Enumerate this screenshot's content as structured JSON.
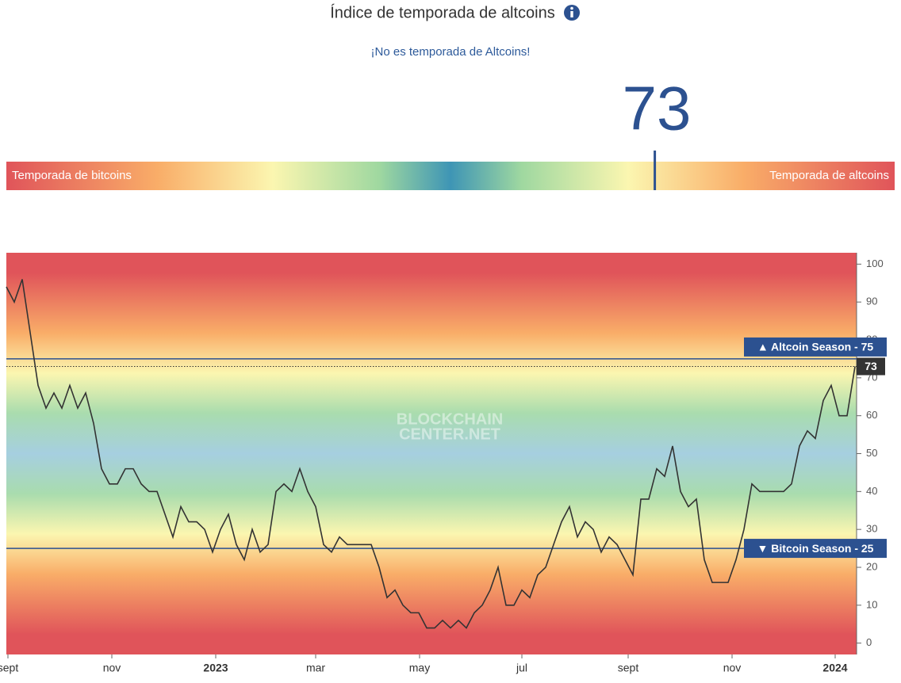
{
  "header": {
    "title": "Índice de temporada de altcoins",
    "subtitle": "¡No es temporada de Altcoins!"
  },
  "gauge": {
    "left_label": "Temporada de bitcoins",
    "right_label": "Temporada de altcoins",
    "range": [
      0,
      100
    ]
  },
  "chart_data": {
    "type": "line",
    "series": [
      {
        "color": "#333333",
        "values": [
          94,
          90,
          96,
          82,
          68,
          62,
          66,
          62,
          68,
          62,
          66,
          58,
          46,
          42,
          42,
          46,
          46,
          42,
          40,
          40,
          34,
          28,
          36,
          32,
          32,
          30,
          24,
          30,
          34,
          26,
          22,
          30,
          24,
          26,
          40,
          42,
          40,
          46,
          40,
          36,
          26,
          24,
          28,
          26,
          26,
          26,
          26,
          20,
          12,
          14,
          10,
          8,
          8,
          4,
          4,
          6,
          4,
          6,
          4,
          8,
          10,
          14,
          20,
          10,
          10,
          14,
          12,
          18,
          20,
          26,
          32,
          36,
          28,
          32,
          30,
          24,
          28,
          26,
          22,
          18,
          38,
          38,
          46,
          44,
          52,
          40,
          36,
          38,
          22,
          16,
          16,
          16,
          22,
          30,
          42,
          40,
          40,
          40,
          40,
          42,
          52,
          56,
          54,
          64,
          68,
          60,
          60,
          73
        ]
      }
    ],
    "xlim": [
      0,
      107.2
    ],
    "xticks": [
      {
        "value": 0.2,
        "label": "sept"
      },
      {
        "value": 13.3,
        "label": "nov"
      },
      {
        "value": 26.4,
        "label": "2023"
      },
      {
        "value": 39,
        "label": "mar"
      },
      {
        "value": 52.1,
        "label": "may"
      },
      {
        "value": 65,
        "label": "jul"
      },
      {
        "value": 78.4,
        "label": "sept"
      },
      {
        "value": 91.5,
        "label": "nov"
      },
      {
        "value": 104.5,
        "label": "2024"
      }
    ],
    "ylim": [
      -3,
      103
    ],
    "yticks": [
      0,
      10,
      20,
      30,
      40,
      50,
      60,
      70,
      80,
      90,
      100
    ],
    "reference_lines": [
      {
        "value": 75,
        "label": "▲ Altcoin Season - 75",
        "color": "#2c5190"
      },
      {
        "value": 25,
        "label": "▼ Bitcoin Season - 25",
        "color": "#2c5190"
      }
    ],
    "watermark": [
      "BLOCKCHAIN",
      "CENTER.NET"
    ]
  }
}
